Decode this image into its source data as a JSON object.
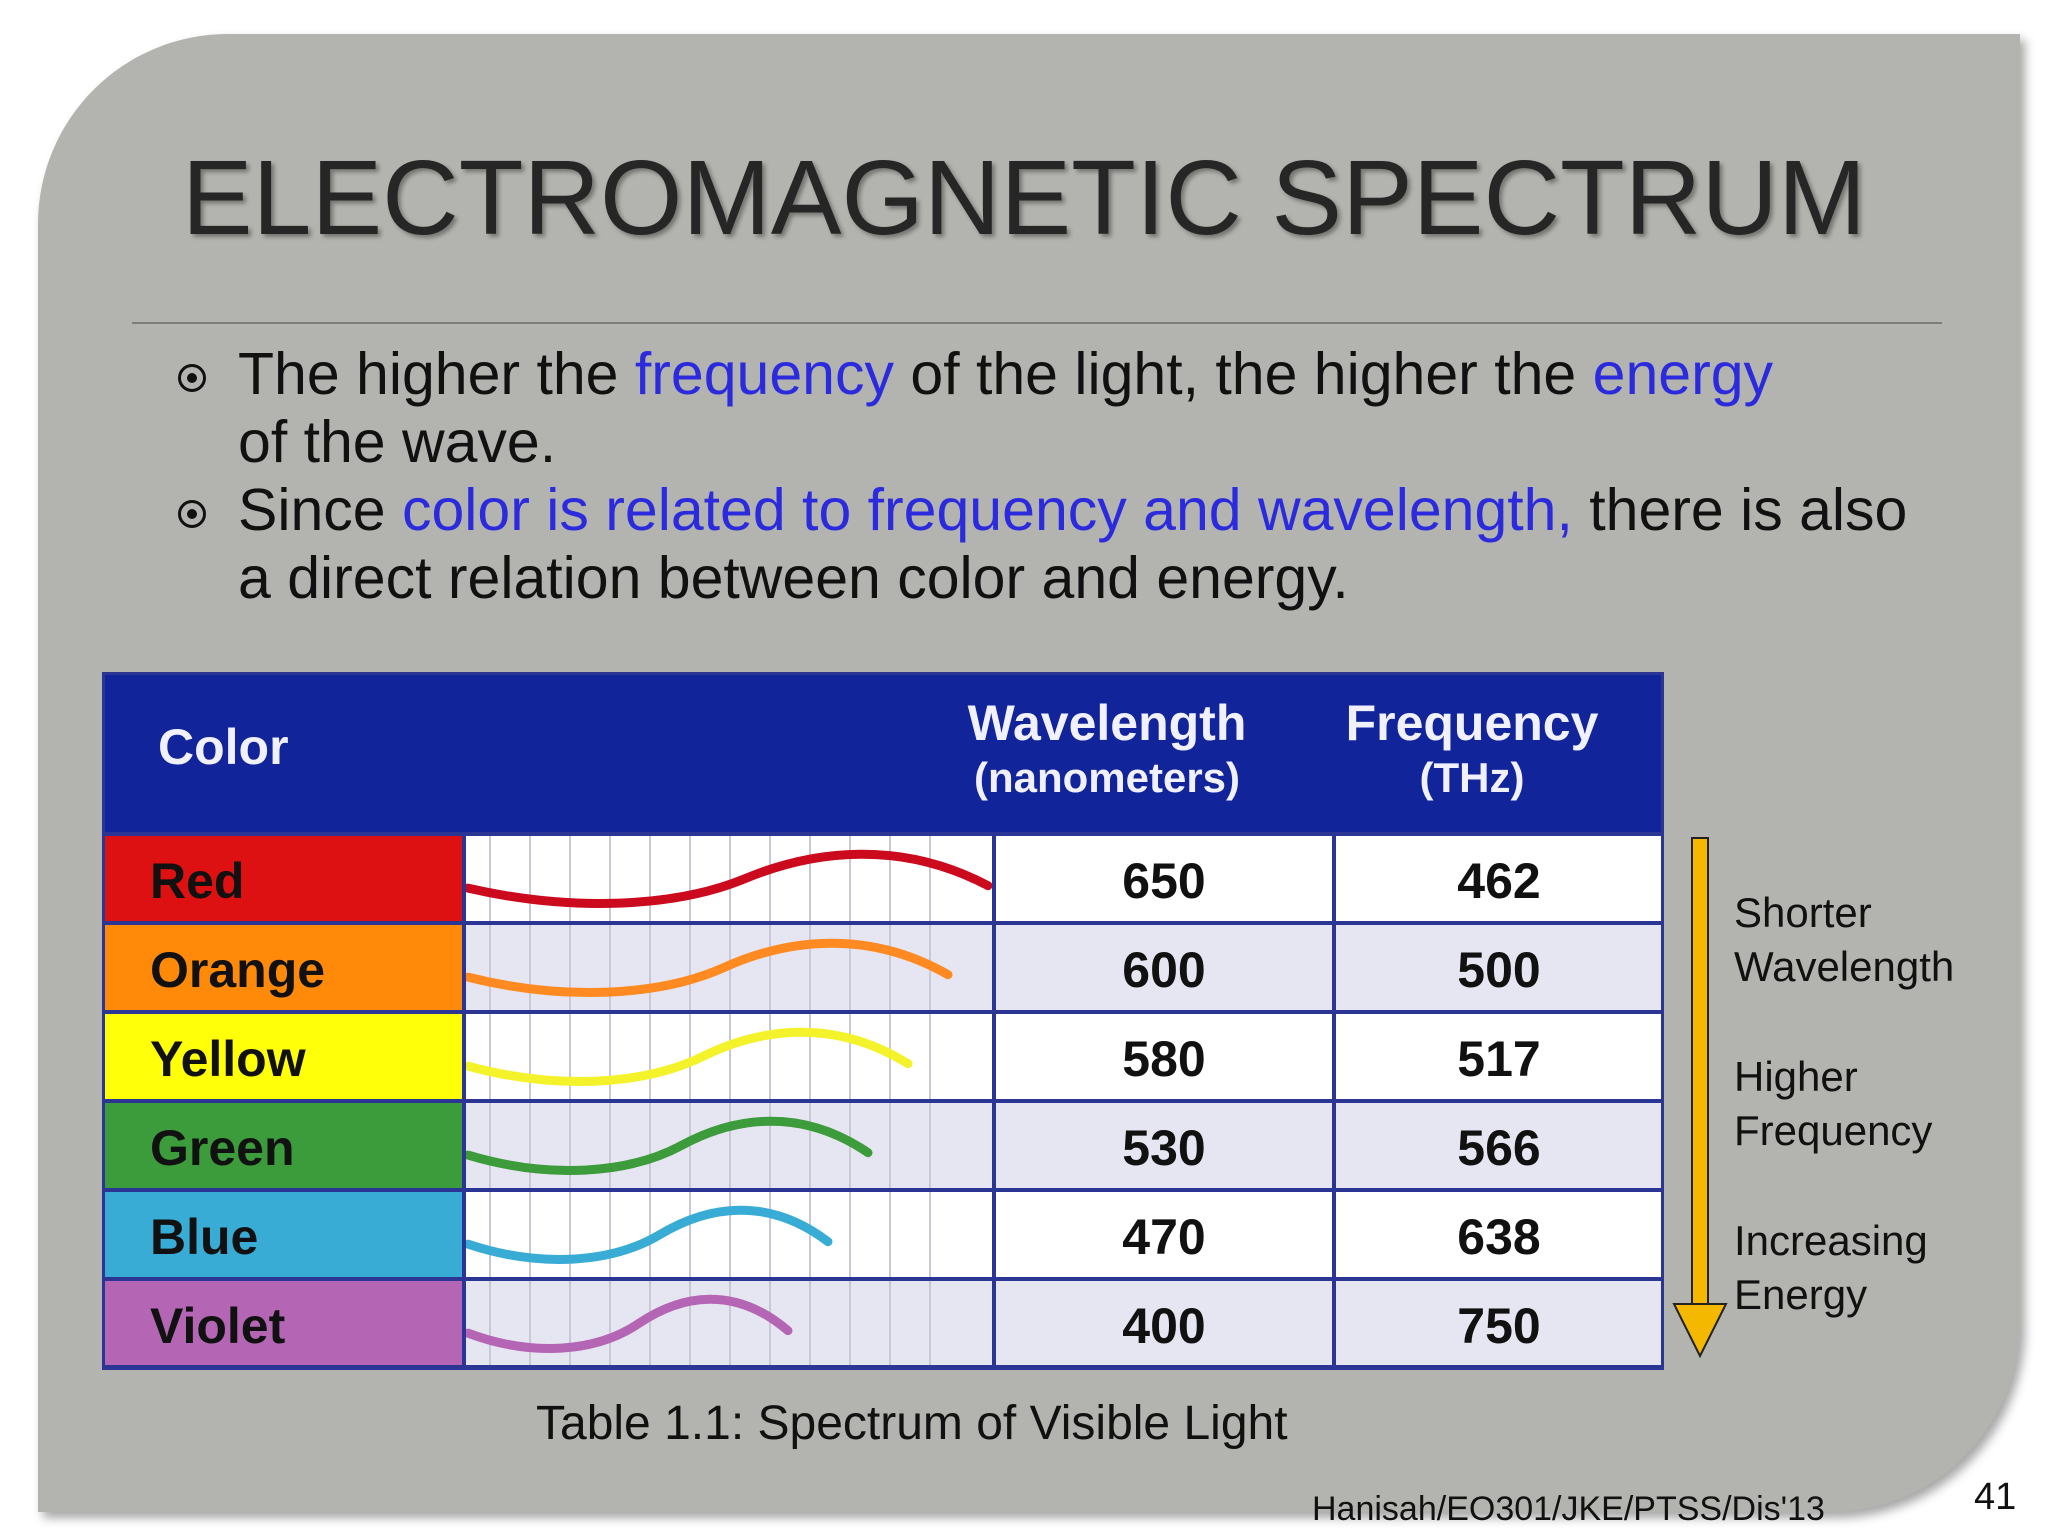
{
  "slide": {
    "title": "ELECTROMAGNETIC SPECTRUM",
    "bullets": [
      {
        "parts": [
          "The higher the ",
          "frequency",
          " of the light, the higher the ",
          "energy",
          " of the wave."
        ]
      },
      {
        "parts": [
          "Since ",
          "color is related to frequency and wavelength,",
          " there is also a direct relation between color and energy."
        ]
      }
    ],
    "highlight_color": "#2b2bdd",
    "table": {
      "header": {
        "color": "Color",
        "wavelength": "Wavelength",
        "wavelength_unit": "(nanometers)",
        "frequency": "Frequency",
        "frequency_unit": "(THz)"
      },
      "header_color": "#12249a",
      "rows": [
        {
          "color": "Red",
          "wavelength": "650",
          "frequency": "462",
          "swatch": "#dd1111",
          "wave": "#cc0a1e"
        },
        {
          "color": "Orange",
          "wavelength": "600",
          "frequency": "500",
          "swatch": "#ff8a0a",
          "wave": "#ff8a22"
        },
        {
          "color": "Yellow",
          "wavelength": "580",
          "frequency": "517",
          "swatch": "#ffff0a",
          "wave": "#f4f22a"
        },
        {
          "color": "Green",
          "wavelength": "530",
          "frequency": "566",
          "swatch": "#3c9b3a",
          "wave": "#3c9b3a"
        },
        {
          "color": "Blue",
          "wavelength": "470",
          "frequency": "638",
          "swatch": "#39acd6",
          "wave": "#39acd6"
        },
        {
          "color": "Violet",
          "wavelength": "400",
          "frequency": "750",
          "swatch": "#b466b4",
          "wave": "#b466b4"
        }
      ]
    },
    "arrow_color": "#f5b800",
    "side_notes": [
      {
        "line1": "Shorter",
        "line2": "Wavelength"
      },
      {
        "line1": "Higher",
        "line2": "Frequency"
      },
      {
        "line1": "Increasing",
        "line2": "Energy"
      }
    ],
    "caption": "Table 1.1:  Spectrum of Visible Light",
    "footer": "Hanisah/EO301/JKE/PTSS/Dis'13",
    "page_number": "41"
  }
}
